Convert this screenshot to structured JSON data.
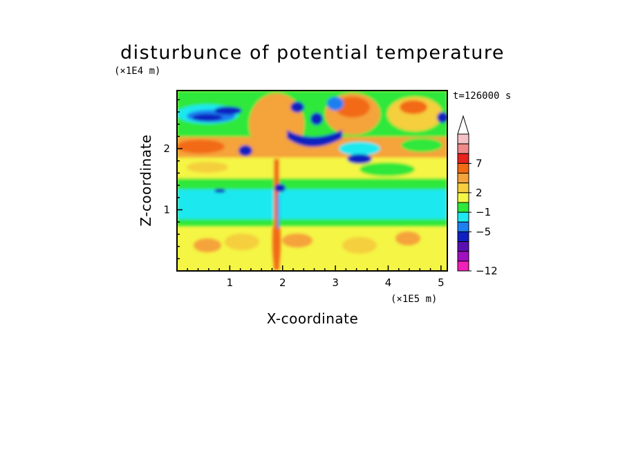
{
  "chart_data": {
    "type": "heatmap",
    "title": "disturbunce of potential temperature",
    "time_label": "t=126000 s",
    "xlabel": "X-coordinate",
    "ylabel": "Z-coordinate",
    "x_unit_label": "(×1E5 m)",
    "y_unit_label": "(×1E4 m)",
    "xlim": [
      0,
      5.12
    ],
    "ylim": [
      0,
      2.95
    ],
    "x_ticks": [
      "1",
      "2",
      "3",
      "4",
      "5"
    ],
    "x_tick_values": [
      1,
      2,
      3,
      4,
      5
    ],
    "y_ticks": [
      "1",
      "2"
    ],
    "y_tick_values": [
      1,
      2
    ],
    "colorbar": {
      "labels": [
        "7",
        "2",
        "−1",
        "−5",
        "−12"
      ],
      "colors": [
        "#f5c2c7",
        "#f08a8a",
        "#e8221d",
        "#f26b12",
        "#f5a33a",
        "#f5cf3d",
        "#f5f545",
        "#2ee83a",
        "#1ee8f0",
        "#1e7ff0",
        "#1020c0",
        "#5a10b0",
        "#a010c0",
        "#f020b8"
      ],
      "extend": "max"
    },
    "bands": [
      {
        "z": 2.62,
        "level": "blue"
      },
      {
        "z": 2.15,
        "level": "orange"
      },
      {
        "z": 1.45,
        "level": "green"
      },
      {
        "z": 1.08,
        "level": "cyan"
      },
      {
        "z": 0.45,
        "level": "yellow"
      }
    ]
  }
}
